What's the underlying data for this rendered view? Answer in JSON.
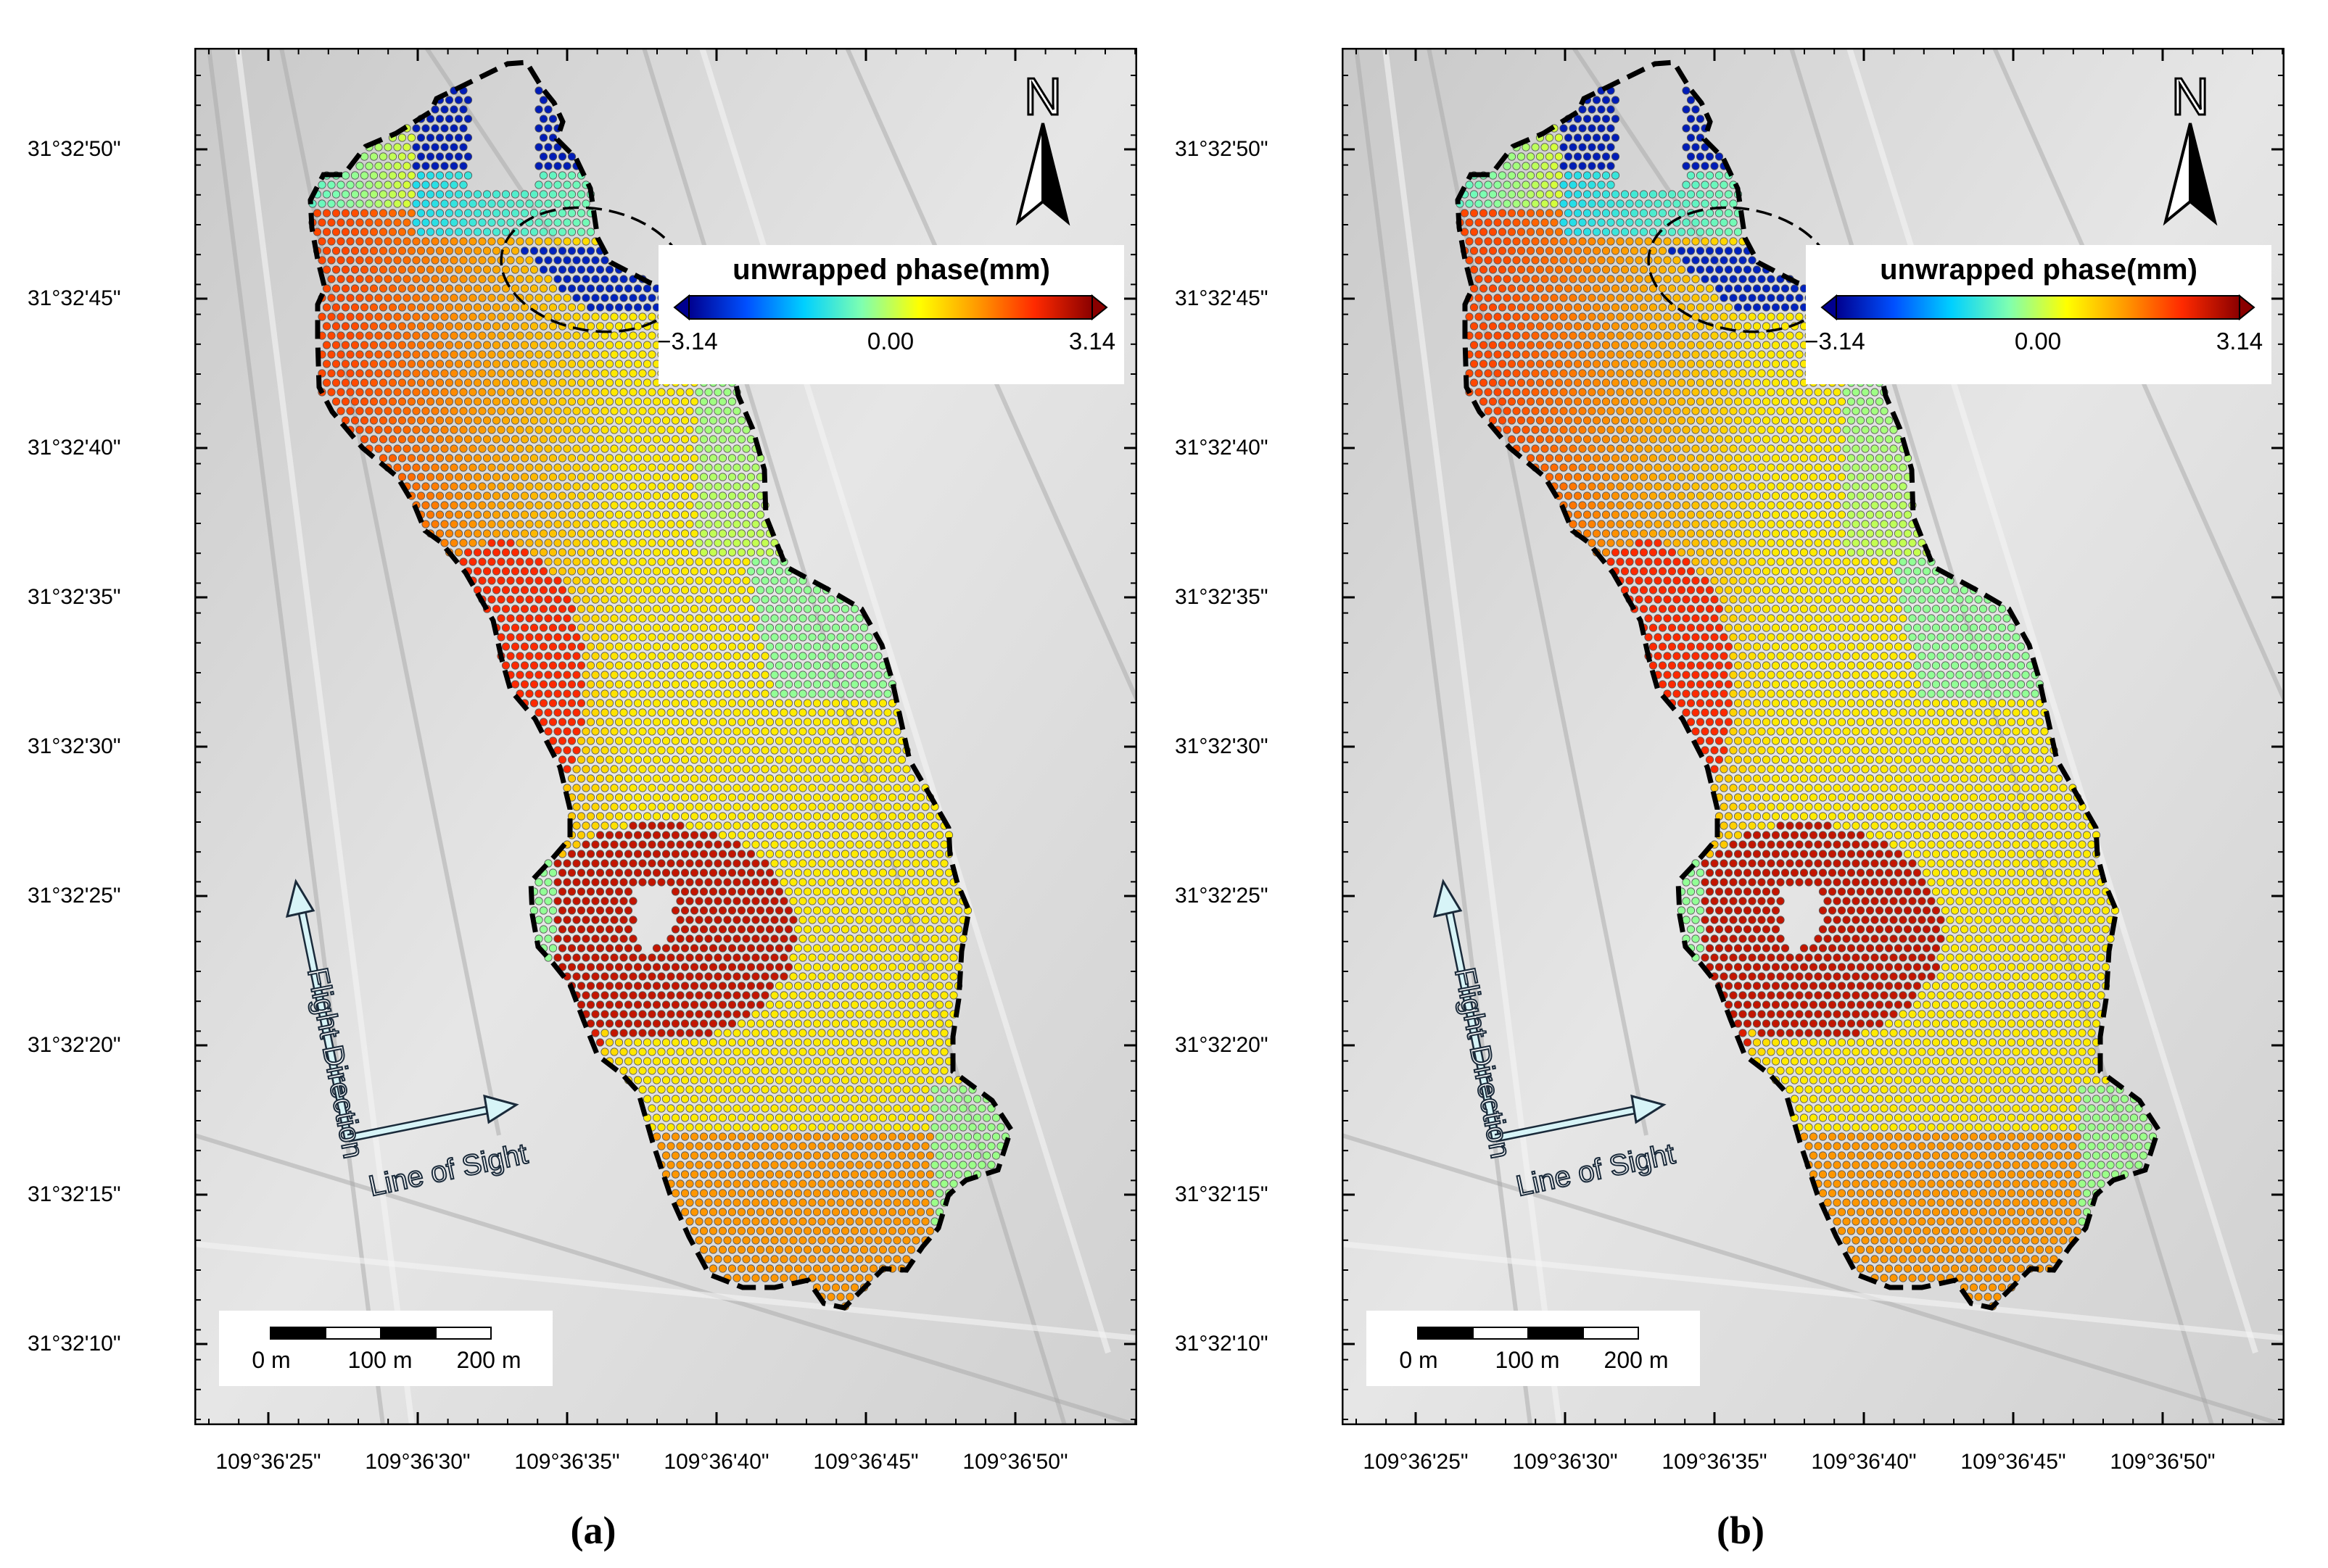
{
  "panels": [
    {
      "id": "a",
      "caption": "(a)",
      "variant": "a",
      "legend": {
        "title": "unwrapped phase(mm)",
        "min_label": "−3.14",
        "mid_label": "0.00",
        "max_label": "3.14"
      },
      "north_label": "N",
      "flight_label": "Flight Direction",
      "los_label": "Line of Sight",
      "scale": {
        "labels": [
          "0 m",
          "100 m",
          "200 m"
        ]
      },
      "lat_ticks": [
        "31°32'50\"",
        "31°32'45\"",
        "31°32'40\"",
        "31°32'35\"",
        "31°32'30\"",
        "31°32'25\"",
        "31°32'20\"",
        "31°32'15\"",
        "31°32'10\""
      ],
      "lon_ticks": [
        "109°36'25\"",
        "109°36'30\"",
        "109°36'35\"",
        "109°36'40\"",
        "109°36'45\"",
        "109°36'50\""
      ]
    },
    {
      "id": "b",
      "caption": "(b)",
      "variant": "b",
      "legend": {
        "title": "unwrapped phase(mm)",
        "min_label": "−3.14",
        "mid_label": "0.00",
        "max_label": "3.14"
      },
      "north_label": "N",
      "flight_label": "Flight Direction",
      "los_label": "Line of Sight",
      "scale": {
        "labels": [
          "0 m",
          "100 m",
          "200 m"
        ]
      },
      "lat_ticks": [
        "31°32'50\"",
        "31°32'45\"",
        "31°32'40\"",
        "31°32'35\"",
        "31°32'30\"",
        "31°32'25\"",
        "31°32'20\"",
        "31°32'15\"",
        "31°32'10\""
      ],
      "lon_ticks": [
        "109°36'25\"",
        "109°36'30\"",
        "109°36'35\"",
        "109°36'40\"",
        "109°36'45\"",
        "109°36'50\""
      ]
    }
  ],
  "colors": {
    "colormap": [
      "#00008f",
      "#0050ff",
      "#00d0ff",
      "#7fffb0",
      "#ffff00",
      "#ff9a00",
      "#ff2a00",
      "#8a0000"
    ],
    "boundary": "#000000",
    "hillshade": "#d9d9d9"
  },
  "icons": [
    "north-arrow-icon",
    "flight-direction-arrow-icon",
    "line-of-sight-arrow-icon"
  ]
}
